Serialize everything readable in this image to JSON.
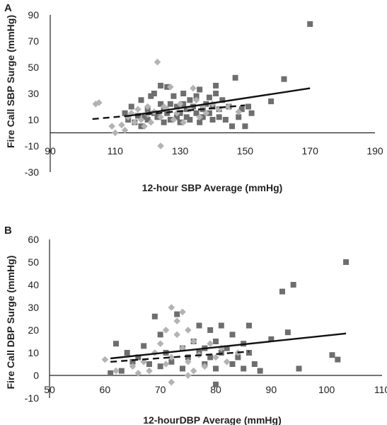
{
  "chart_data": [
    {
      "type": "scatter",
      "panel_label": "A",
      "xlabel": "12-hour SBP Average (mmHg)",
      "ylabel": "Fire Call SBP Surge (mmHg)",
      "xlim": [
        90,
        190
      ],
      "ylim": [
        -30,
        90
      ],
      "x_ticks": [
        90,
        110,
        130,
        150,
        170,
        190
      ],
      "y_ticks": [
        -30,
        -10,
        10,
        30,
        50,
        70,
        90
      ],
      "x_tick_labels": [
        "90",
        "110",
        "130",
        "150",
        "170",
        "190"
      ],
      "y_tick_labels": [
        "-30",
        "-10",
        "10",
        "30",
        "50",
        "70",
        "90"
      ],
      "series": [
        {
          "marker": "square",
          "color": "#6e6e6e",
          "trendline": {
            "style": "solid",
            "x": [
              113,
              170
            ],
            "y": [
              12.5,
              34
            ]
          },
          "points": [
            {
              "x": 113,
              "y": 15
            },
            {
              "x": 114,
              "y": 10
            },
            {
              "x": 115,
              "y": 20
            },
            {
              "x": 116,
              "y": 8
            },
            {
              "x": 117,
              "y": 13
            },
            {
              "x": 118,
              "y": 25
            },
            {
              "x": 118,
              "y": 5
            },
            {
              "x": 119,
              "y": 12
            },
            {
              "x": 120,
              "y": 18
            },
            {
              "x": 120,
              "y": 10
            },
            {
              "x": 121,
              "y": 28
            },
            {
              "x": 122,
              "y": 15
            },
            {
              "x": 122,
              "y": 30
            },
            {
              "x": 123,
              "y": 12
            },
            {
              "x": 124,
              "y": 22
            },
            {
              "x": 124,
              "y": 36
            },
            {
              "x": 125,
              "y": 8
            },
            {
              "x": 125,
              "y": 18
            },
            {
              "x": 126,
              "y": 15
            },
            {
              "x": 126,
              "y": 35
            },
            {
              "x": 127,
              "y": 10
            },
            {
              "x": 127,
              "y": 22
            },
            {
              "x": 128,
              "y": 28
            },
            {
              "x": 129,
              "y": 12
            },
            {
              "x": 129,
              "y": 20
            },
            {
              "x": 130,
              "y": 15
            },
            {
              "x": 130,
              "y": 8
            },
            {
              "x": 131,
              "y": 22
            },
            {
              "x": 131,
              "y": 30
            },
            {
              "x": 132,
              "y": 12
            },
            {
              "x": 132,
              "y": 18
            },
            {
              "x": 133,
              "y": 25
            },
            {
              "x": 133,
              "y": 10
            },
            {
              "x": 134,
              "y": 20
            },
            {
              "x": 135,
              "y": 15
            },
            {
              "x": 135,
              "y": 28
            },
            {
              "x": 136,
              "y": 8
            },
            {
              "x": 136,
              "y": 33
            },
            {
              "x": 137,
              "y": 18
            },
            {
              "x": 137,
              "y": 12
            },
            {
              "x": 138,
              "y": 22
            },
            {
              "x": 139,
              "y": 15
            },
            {
              "x": 139,
              "y": 27
            },
            {
              "x": 140,
              "y": 10
            },
            {
              "x": 140,
              "y": 20
            },
            {
              "x": 141,
              "y": 30
            },
            {
              "x": 141,
              "y": 36
            },
            {
              "x": 142,
              "y": 12
            },
            {
              "x": 142,
              "y": 18
            },
            {
              "x": 143,
              "y": 25
            },
            {
              "x": 144,
              "y": 10
            },
            {
              "x": 145,
              "y": 20
            },
            {
              "x": 146,
              "y": 5
            },
            {
              "x": 147,
              "y": 42
            },
            {
              "x": 148,
              "y": 12
            },
            {
              "x": 149,
              "y": 18
            },
            {
              "x": 150,
              "y": 5
            },
            {
              "x": 151,
              "y": 20
            },
            {
              "x": 152,
              "y": 15
            },
            {
              "x": 158,
              "y": 24
            },
            {
              "x": 162,
              "y": 41
            },
            {
              "x": 170,
              "y": 83
            }
          ]
        },
        {
          "marker": "diamond",
          "color": "#b3b3b3",
          "trendline": {
            "style": "dashed",
            "x": [
              103,
              150
            ],
            "y": [
              10.5,
              21
            ]
          },
          "points": [
            {
              "x": 104,
              "y": 22
            },
            {
              "x": 105,
              "y": 23
            },
            {
              "x": 109,
              "y": 5
            },
            {
              "x": 110,
              "y": 0
            },
            {
              "x": 112,
              "y": 6
            },
            {
              "x": 113,
              "y": 2
            },
            {
              "x": 114,
              "y": 12
            },
            {
              "x": 115,
              "y": 15
            },
            {
              "x": 116,
              "y": 8
            },
            {
              "x": 117,
              "y": 18
            },
            {
              "x": 118,
              "y": 10
            },
            {
              "x": 119,
              "y": 5
            },
            {
              "x": 120,
              "y": 20
            },
            {
              "x": 120,
              "y": 14
            },
            {
              "x": 121,
              "y": 8
            },
            {
              "x": 122,
              "y": 16
            },
            {
              "x": 123,
              "y": 54
            },
            {
              "x": 124,
              "y": 12
            },
            {
              "x": 124,
              "y": -10
            },
            {
              "x": 125,
              "y": 20
            },
            {
              "x": 126,
              "y": 18
            },
            {
              "x": 127,
              "y": 35
            },
            {
              "x": 128,
              "y": 10
            },
            {
              "x": 129,
              "y": 15
            },
            {
              "x": 130,
              "y": 22
            },
            {
              "x": 131,
              "y": 8
            },
            {
              "x": 133,
              "y": 18
            },
            {
              "x": 134,
              "y": 34
            },
            {
              "x": 135,
              "y": 25
            },
            {
              "x": 136,
              "y": 12
            },
            {
              "x": 137,
              "y": 20
            },
            {
              "x": 138,
              "y": 15
            },
            {
              "x": 140,
              "y": 22
            },
            {
              "x": 142,
              "y": 18
            },
            {
              "x": 145,
              "y": 20
            },
            {
              "x": 148,
              "y": 16
            }
          ]
        }
      ]
    },
    {
      "type": "scatter",
      "panel_label": "B",
      "xlabel": "12-hourDBP Average (mmHg)",
      "ylabel": "Fire Call DBP Surge (mmHg)",
      "xlim": [
        50,
        110
      ],
      "ylim": [
        -10,
        60
      ],
      "x_ticks": [
        50,
        60,
        70,
        80,
        90,
        100,
        110
      ],
      "y_ticks": [
        -10,
        0,
        10,
        20,
        30,
        40,
        50,
        60
      ],
      "x_tick_labels": [
        "50",
        "60",
        "70",
        "80",
        "90",
        "100",
        "110"
      ],
      "y_tick_labels": [
        "-10",
        "0",
        "10",
        "20",
        "30",
        "40",
        "50",
        "60"
      ],
      "series": [
        {
          "marker": "square",
          "color": "#6e6e6e",
          "trendline": {
            "style": "solid",
            "x": [
              61,
              103.5
            ],
            "y": [
              7.5,
              18.5
            ]
          },
          "points": [
            {
              "x": 61,
              "y": 1
            },
            {
              "x": 62,
              "y": 14
            },
            {
              "x": 63,
              "y": 2
            },
            {
              "x": 64,
              "y": 10
            },
            {
              "x": 65,
              "y": 6
            },
            {
              "x": 66,
              "y": 8
            },
            {
              "x": 67,
              "y": 13
            },
            {
              "x": 68,
              "y": 5
            },
            {
              "x": 69,
              "y": 26
            },
            {
              "x": 70,
              "y": 4
            },
            {
              "x": 70,
              "y": 18
            },
            {
              "x": 71,
              "y": 10
            },
            {
              "x": 72,
              "y": 6
            },
            {
              "x": 73,
              "y": 27
            },
            {
              "x": 74,
              "y": 12
            },
            {
              "x": 74,
              "y": 3
            },
            {
              "x": 75,
              "y": 8
            },
            {
              "x": 76,
              "y": 15
            },
            {
              "x": 77,
              "y": 10
            },
            {
              "x": 77,
              "y": 22
            },
            {
              "x": 78,
              "y": 5
            },
            {
              "x": 78,
              "y": 12
            },
            {
              "x": 79,
              "y": 20
            },
            {
              "x": 79,
              "y": 8
            },
            {
              "x": 80,
              "y": 15
            },
            {
              "x": 80,
              "y": 3
            },
            {
              "x": 81,
              "y": 10
            },
            {
              "x": 81,
              "y": 22
            },
            {
              "x": 82,
              "y": 12
            },
            {
              "x": 83,
              "y": 5
            },
            {
              "x": 83,
              "y": 18
            },
            {
              "x": 84,
              "y": 8
            },
            {
              "x": 85,
              "y": 14
            },
            {
              "x": 85,
              "y": 3
            },
            {
              "x": 86,
              "y": 10
            },
            {
              "x": 86,
              "y": 22
            },
            {
              "x": 87,
              "y": 5
            },
            {
              "x": 88,
              "y": 2
            },
            {
              "x": 90,
              "y": 16
            },
            {
              "x": 92,
              "y": 37
            },
            {
              "x": 93,
              "y": 19
            },
            {
              "x": 94,
              "y": 40
            },
            {
              "x": 95,
              "y": 3
            },
            {
              "x": 101,
              "y": 9
            },
            {
              "x": 102,
              "y": 7
            },
            {
              "x": 103.5,
              "y": 50
            },
            {
              "x": 80,
              "y": -4
            }
          ]
        },
        {
          "marker": "diamond",
          "color": "#b3b3b3",
          "trendline": {
            "style": "dashed",
            "x": [
              61,
              86
            ],
            "y": [
              6,
              10.5
            ]
          },
          "points": [
            {
              "x": 60,
              "y": 7
            },
            {
              "x": 62,
              "y": 2
            },
            {
              "x": 65,
              "y": 4
            },
            {
              "x": 66,
              "y": 1
            },
            {
              "x": 67,
              "y": 6
            },
            {
              "x": 68,
              "y": 2
            },
            {
              "x": 69,
              "y": 10
            },
            {
              "x": 70,
              "y": 14
            },
            {
              "x": 71,
              "y": 5
            },
            {
              "x": 71,
              "y": 20
            },
            {
              "x": 72,
              "y": 30
            },
            {
              "x": 72,
              "y": 8
            },
            {
              "x": 72,
              "y": -3
            },
            {
              "x": 73,
              "y": 18
            },
            {
              "x": 73,
              "y": 24
            },
            {
              "x": 74,
              "y": 12
            },
            {
              "x": 74,
              "y": 28
            },
            {
              "x": 75,
              "y": 6
            },
            {
              "x": 75,
              "y": 20
            },
            {
              "x": 75,
              "y": 0
            },
            {
              "x": 76,
              "y": 15
            },
            {
              "x": 76,
              "y": 2
            },
            {
              "x": 77,
              "y": 9
            },
            {
              "x": 78,
              "y": 4
            },
            {
              "x": 79,
              "y": 14
            },
            {
              "x": 80,
              "y": 8
            },
            {
              "x": 81,
              "y": 12
            },
            {
              "x": 82,
              "y": 6
            },
            {
              "x": 84,
              "y": 10
            }
          ]
        }
      ]
    }
  ]
}
